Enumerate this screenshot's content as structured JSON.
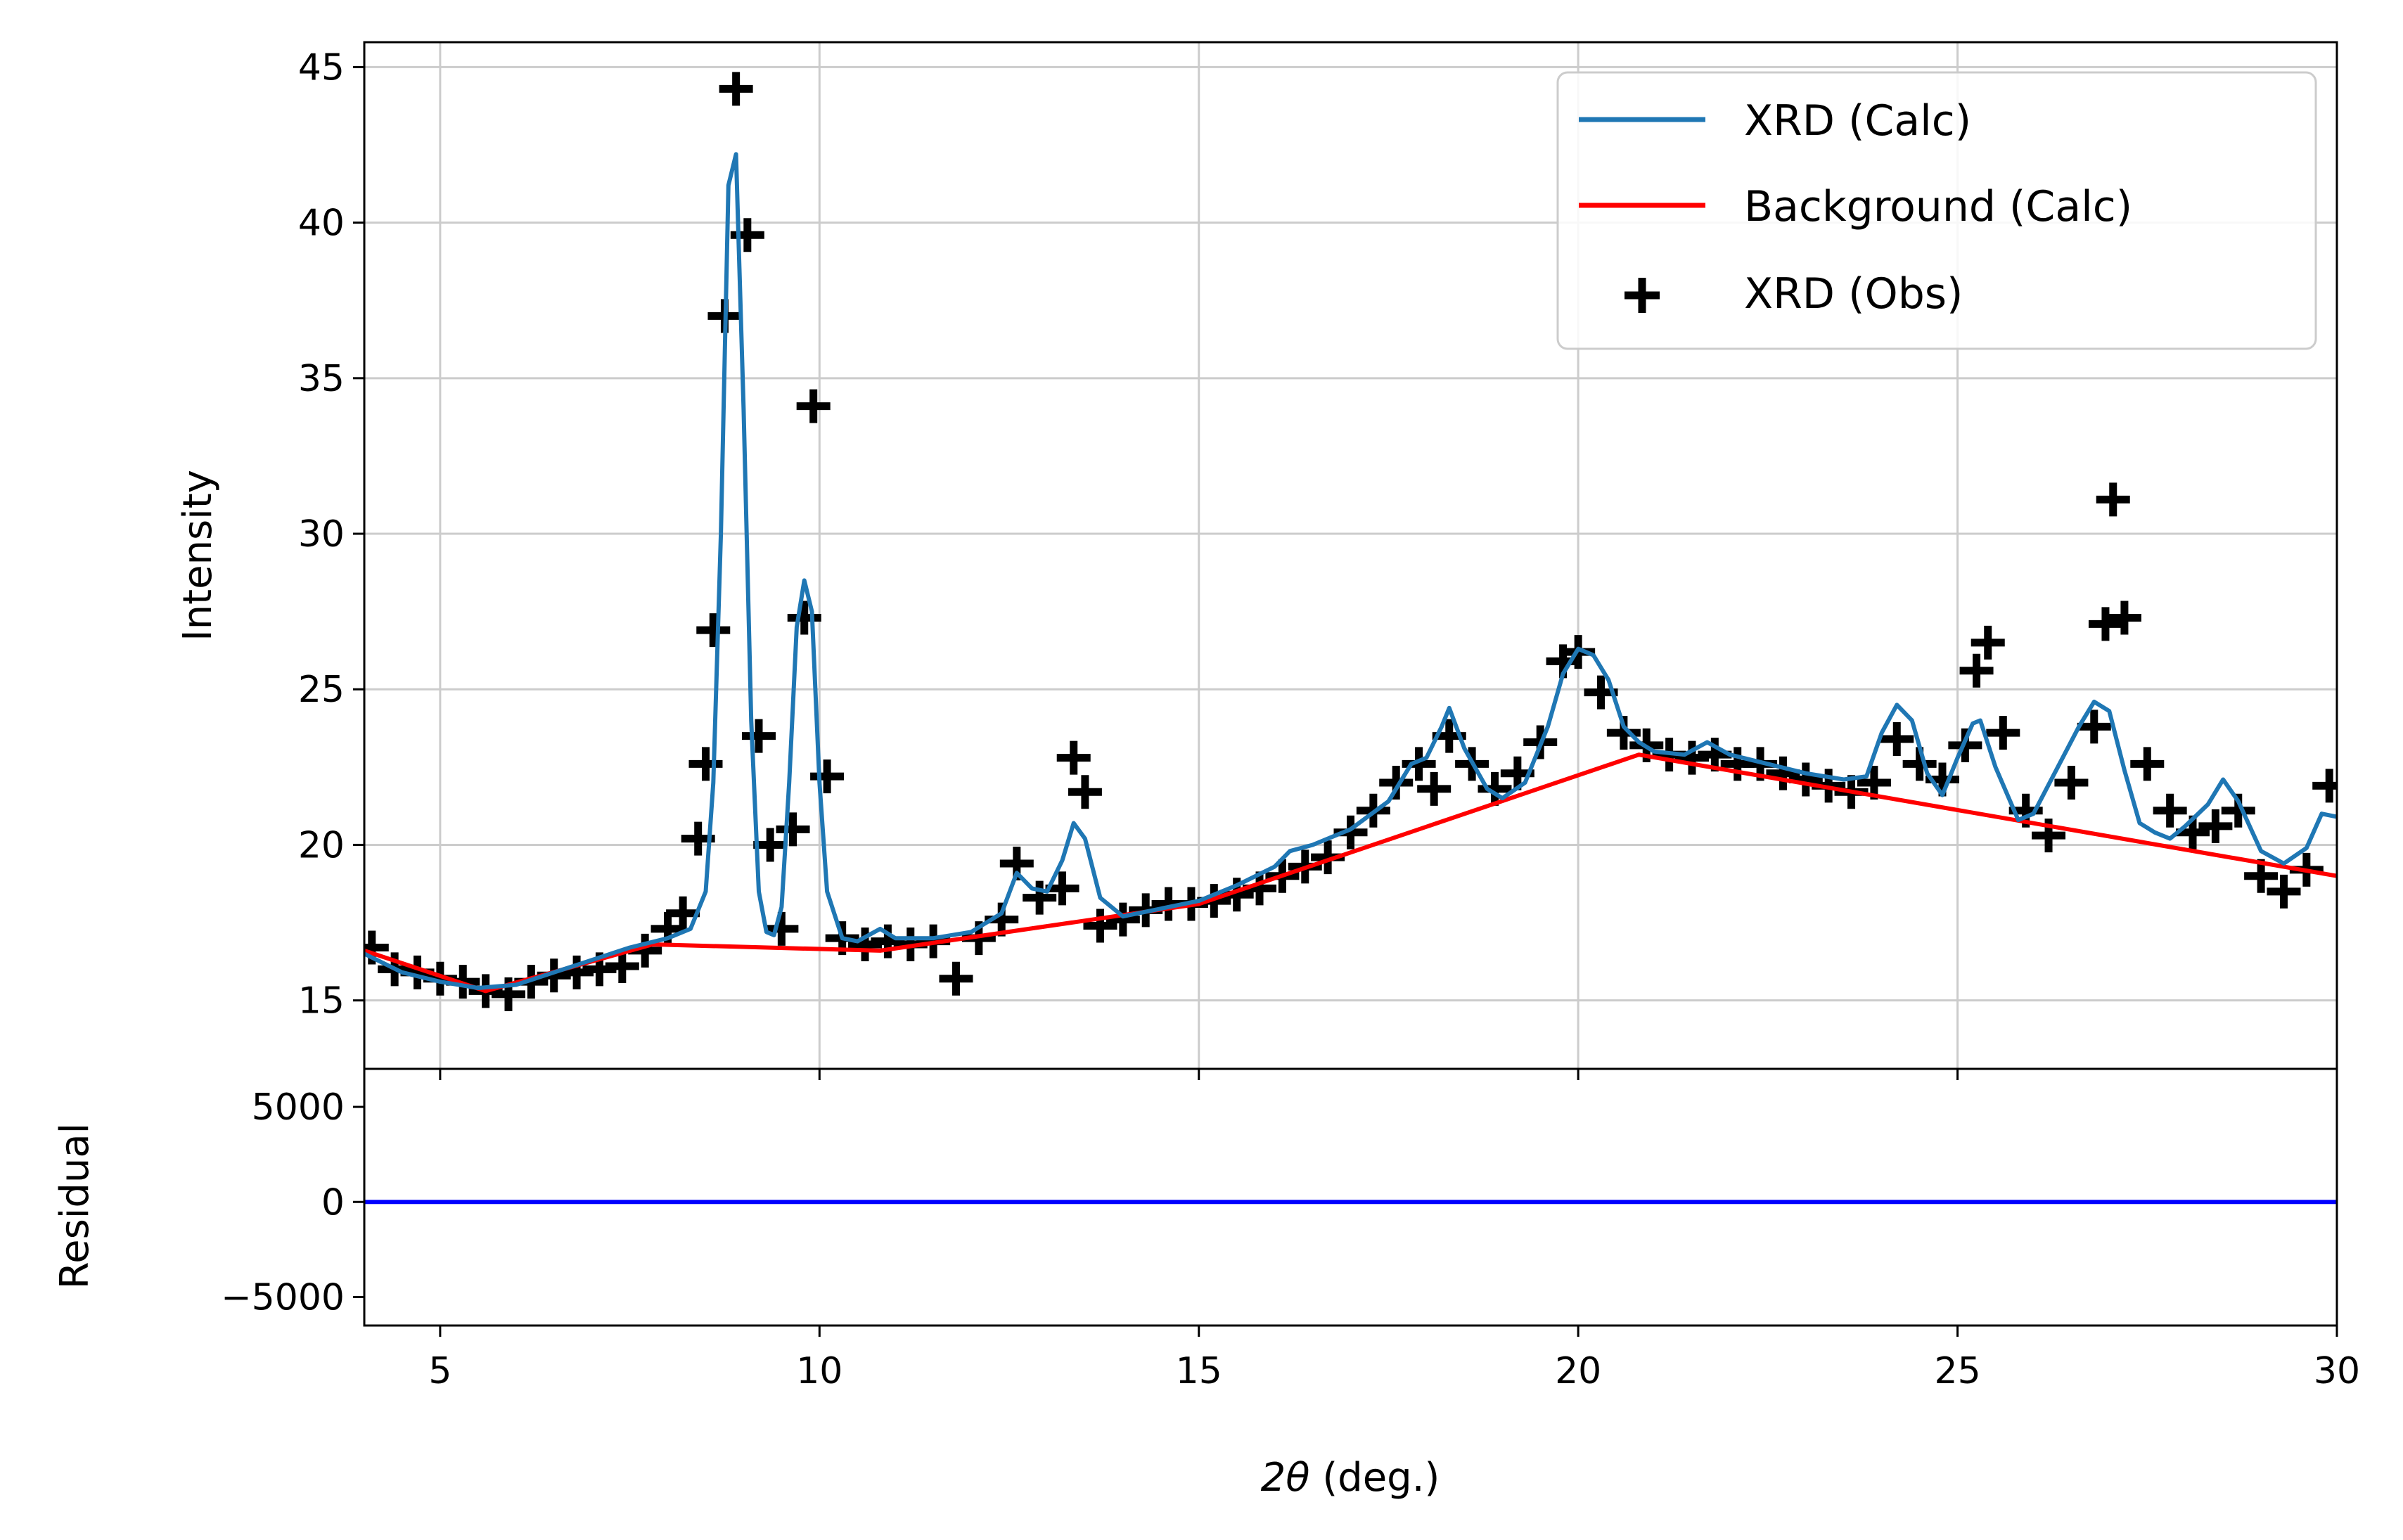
{
  "chart_data": {
    "type": "line",
    "xlabel_symbol": "2θ",
    "xlabel_unit": " (deg.)",
    "xlim": [
      4,
      30
    ],
    "x_ticks": [
      5,
      10,
      15,
      20,
      25,
      30
    ],
    "grid": true,
    "legend_position": "top-right",
    "colors": {
      "calc": "#1f77b4",
      "background": "#ff0000",
      "obs": "#000000",
      "residual": "#0000ff"
    },
    "main": {
      "ylabel": "Intensity",
      "ylim": [
        12.8,
        45.8
      ],
      "y_ticks": [
        15,
        20,
        25,
        30,
        35,
        40,
        45
      ]
    },
    "residual_panel": {
      "ylabel": "Residual",
      "ylim": [
        -6500,
        7000
      ],
      "y_ticks": [
        -5000,
        0,
        5000
      ],
      "y_tick_labels": [
        "−5000",
        "0",
        "5000"
      ]
    },
    "legend": [
      "XRD (Calc)",
      "Background (Calc)",
      "XRD (Obs)"
    ],
    "series": [
      {
        "name": "XRD (Calc)",
        "kind": "line",
        "x": [
          4.0,
          4.5,
          5.0,
          5.5,
          6.0,
          6.5,
          7.0,
          7.5,
          8.0,
          8.3,
          8.5,
          8.6,
          8.7,
          8.8,
          8.9,
          9.0,
          9.1,
          9.2,
          9.3,
          9.4,
          9.5,
          9.6,
          9.7,
          9.8,
          9.9,
          10.0,
          10.1,
          10.3,
          10.5,
          10.8,
          11.0,
          11.5,
          12.0,
          12.4,
          12.6,
          12.8,
          13.0,
          13.2,
          13.35,
          13.5,
          13.7,
          14.0,
          15.0,
          15.5,
          16.0,
          16.2,
          16.5,
          16.8,
          17.0,
          17.5,
          17.8,
          18.0,
          18.2,
          18.3,
          18.5,
          18.8,
          19.0,
          19.3,
          19.6,
          19.8,
          20.0,
          20.2,
          20.4,
          20.6,
          20.8,
          21.0,
          21.4,
          21.7,
          22.0,
          22.5,
          23.0,
          23.5,
          23.8,
          24.0,
          24.2,
          24.4,
          24.6,
          24.8,
          25.0,
          25.2,
          25.3,
          25.5,
          25.8,
          26.0,
          26.3,
          26.6,
          26.8,
          27.0,
          27.2,
          27.4,
          27.6,
          27.8,
          28.0,
          28.3,
          28.5,
          28.7,
          29.0,
          29.3,
          29.6,
          29.8,
          30.0
        ],
        "y": [
          16.5,
          15.9,
          15.6,
          15.4,
          15.5,
          15.9,
          16.3,
          16.7,
          17.0,
          17.3,
          18.5,
          22.0,
          30.0,
          41.2,
          42.2,
          34.0,
          24.0,
          18.5,
          17.2,
          17.1,
          18.0,
          22.0,
          27.0,
          28.5,
          27.5,
          22.0,
          18.5,
          17.0,
          16.9,
          17.3,
          17.0,
          17.0,
          17.2,
          17.8,
          19.1,
          18.6,
          18.5,
          19.5,
          20.7,
          20.2,
          18.3,
          17.7,
          18.2,
          18.7,
          19.3,
          19.8,
          20.0,
          20.3,
          20.5,
          21.4,
          22.6,
          22.8,
          23.8,
          24.4,
          23.1,
          21.8,
          21.5,
          22.0,
          23.8,
          25.5,
          26.3,
          26.1,
          25.3,
          23.8,
          23.3,
          23.0,
          22.9,
          23.3,
          22.9,
          22.6,
          22.3,
          22.1,
          22.2,
          23.6,
          24.5,
          24.0,
          22.3,
          21.6,
          22.8,
          23.9,
          24.0,
          22.5,
          20.8,
          21.0,
          22.4,
          23.8,
          24.6,
          24.3,
          22.4,
          20.7,
          20.4,
          20.2,
          20.6,
          21.3,
          22.1,
          21.4,
          19.8,
          19.4,
          19.9,
          21.0,
          20.9
        ]
      },
      {
        "name": "Background (Calc)",
        "kind": "line",
        "x": [
          4.0,
          5.6,
          7.8,
          10.8,
          15.0,
          20.8,
          30.0
        ],
        "y": [
          16.6,
          15.3,
          16.8,
          16.6,
          18.1,
          22.9,
          19.0
        ]
      },
      {
        "name": "XRD (Obs)",
        "kind": "scatter",
        "marker": "plus",
        "x": [
          4.1,
          4.4,
          4.7,
          5.0,
          5.3,
          5.6,
          5.9,
          6.2,
          6.5,
          6.8,
          7.1,
          7.4,
          7.7,
          8.0,
          8.2,
          8.4,
          8.5,
          8.6,
          8.75,
          8.9,
          9.05,
          9.2,
          9.35,
          9.5,
          9.65,
          9.8,
          9.92,
          10.1,
          10.3,
          10.6,
          10.9,
          11.2,
          11.5,
          11.8,
          12.1,
          12.4,
          12.6,
          12.9,
          13.2,
          13.35,
          13.5,
          13.7,
          14.0,
          14.3,
          14.6,
          14.9,
          15.2,
          15.5,
          15.8,
          16.1,
          16.4,
          16.7,
          17.0,
          17.3,
          17.6,
          17.9,
          18.1,
          18.3,
          18.6,
          18.9,
          19.2,
          19.5,
          19.8,
          20.0,
          20.3,
          20.6,
          20.9,
          21.2,
          21.5,
          21.8,
          22.1,
          22.4,
          22.7,
          23.0,
          23.3,
          23.6,
          23.9,
          24.2,
          24.5,
          24.8,
          25.1,
          25.25,
          25.4,
          25.6,
          25.9,
          26.2,
          26.5,
          26.8,
          26.95,
          27.05,
          27.2,
          27.5,
          27.8,
          28.1,
          28.4,
          28.7,
          29.0,
          29.3,
          29.6,
          29.9
        ],
        "y": [
          16.7,
          16.0,
          15.9,
          15.7,
          15.6,
          15.3,
          15.2,
          15.6,
          15.8,
          15.9,
          16.0,
          16.1,
          16.6,
          17.3,
          17.8,
          20.2,
          22.6,
          26.9,
          37.0,
          44.3,
          39.6,
          23.5,
          20.0,
          17.3,
          20.5,
          27.3,
          34.1,
          22.2,
          17.0,
          16.8,
          16.9,
          16.8,
          16.9,
          15.7,
          17.0,
          17.6,
          19.4,
          18.3,
          18.6,
          22.8,
          21.7,
          17.4,
          17.6,
          17.9,
          18.1,
          18.1,
          18.2,
          18.4,
          18.6,
          19.0,
          19.3,
          19.6,
          20.4,
          21.1,
          22.0,
          22.6,
          21.8,
          23.5,
          22.6,
          21.8,
          22.3,
          23.3,
          25.9,
          26.2,
          24.9,
          23.6,
          23.2,
          22.9,
          22.8,
          22.9,
          22.6,
          22.6,
          22.3,
          22.1,
          21.9,
          21.7,
          22.0,
          23.4,
          22.6,
          22.1,
          23.2,
          25.6,
          26.5,
          23.6,
          21.1,
          20.3,
          22.0,
          23.8,
          27.1,
          31.1,
          27.3,
          22.6,
          21.1,
          20.4,
          20.6,
          21.1,
          19.0,
          18.5,
          19.2,
          21.9
        ]
      }
    ],
    "residual": {
      "x": [
        4.0,
        30.0
      ],
      "y": [
        0,
        0
      ]
    }
  }
}
